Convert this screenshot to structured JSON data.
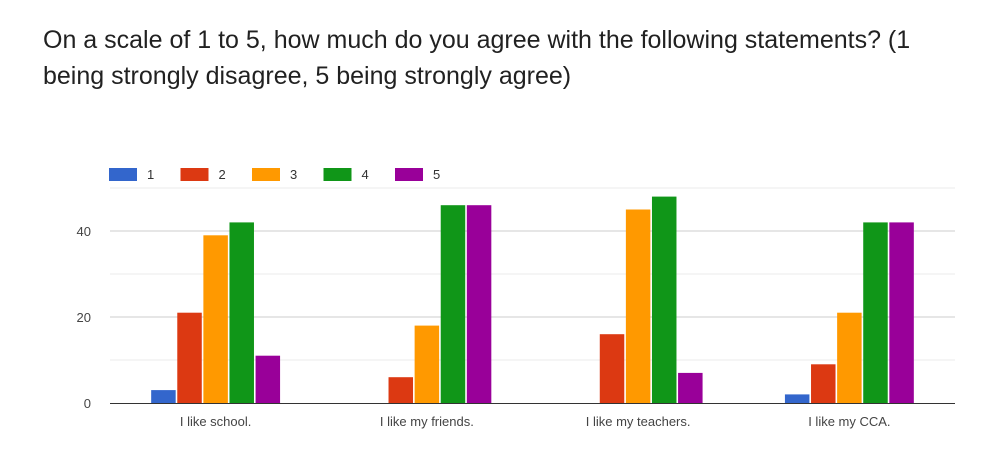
{
  "question": {
    "text": "On a scale of 1 to 5, how much do you agree with the following statements? (1 being strongly disagree, 5 being strongly agree)"
  },
  "chart_data": {
    "type": "bar",
    "categories": [
      "I like school.",
      "I like my friends.",
      "I like my teachers.",
      "I like my CCA."
    ],
    "series": [
      {
        "name": "1",
        "color": "#3366cc",
        "values": [
          3,
          0,
          0,
          2
        ]
      },
      {
        "name": "2",
        "color": "#dc3912",
        "values": [
          21,
          6,
          16,
          9
        ]
      },
      {
        "name": "3",
        "color": "#ff9900",
        "values": [
          39,
          18,
          45,
          21
        ]
      },
      {
        "name": "4",
        "color": "#109618",
        "values": [
          42,
          46,
          48,
          42
        ]
      },
      {
        "name": "5",
        "color": "#990099",
        "values": [
          11,
          46,
          7,
          42
        ]
      }
    ],
    "yticks": [
      0,
      20,
      40
    ],
    "ylim": [
      0,
      50
    ],
    "grid": true,
    "legend_position": "top-left"
  }
}
